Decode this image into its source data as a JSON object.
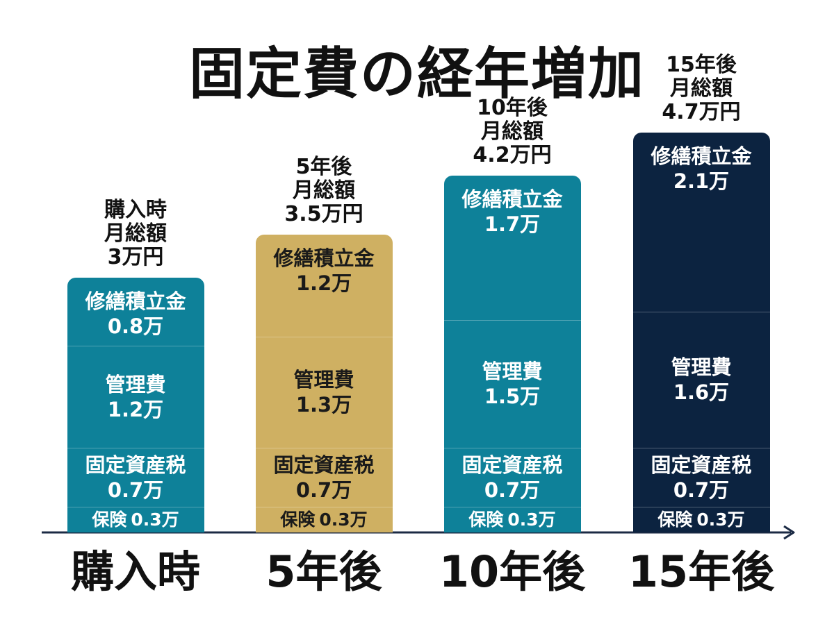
{
  "chart_data": {
    "type": "bar",
    "stacked": true,
    "title": "固定費の経年増加",
    "unit": "万",
    "categories": [
      "購入時",
      "5年後",
      "10年後",
      "15年後"
    ],
    "totals": [
      {
        "lines": [
          "購入時",
          "月総額",
          "3万円"
        ]
      },
      {
        "lines": [
          "5年後",
          "月総額",
          "3.5万円"
        ]
      },
      {
        "lines": [
          "10年後",
          "月総額",
          "4.2万円"
        ]
      },
      {
        "lines": [
          "15年後",
          "月総額",
          "4.7万円"
        ]
      }
    ],
    "series": [
      {
        "name": "保険",
        "values": [
          0.3,
          0.3,
          0.3,
          0.3
        ],
        "labels": [
          "0.3万",
          "0.3万",
          "0.3万",
          "0.3万"
        ]
      },
      {
        "name": "固定資産税",
        "values": [
          0.7,
          0.7,
          0.7,
          0.7
        ],
        "labels": [
          "0.7万",
          "0.7万",
          "0.7万",
          "0.7万"
        ]
      },
      {
        "name": "管理費",
        "values": [
          1.2,
          1.3,
          1.5,
          1.6
        ],
        "labels": [
          "1.2万",
          "1.3万",
          "1.5万",
          "1.6万"
        ]
      },
      {
        "name": "修繕積立金",
        "values": [
          0.8,
          1.2,
          1.7,
          2.1
        ],
        "labels": [
          "0.8万",
          "1.2万",
          "1.7万",
          "2.1万"
        ]
      }
    ],
    "bar_colors": [
      "#0e8199",
      "#cfb062",
      "#0e8199",
      "#0c2340"
    ],
    "text_colors": [
      "#ffffff",
      "#1a1a1a",
      "#ffffff",
      "#ffffff"
    ]
  }
}
